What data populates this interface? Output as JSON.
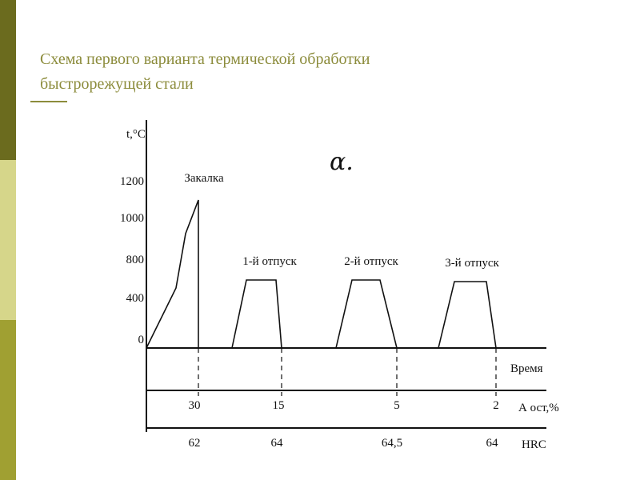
{
  "title": [
    "Схема первого варианта термической обработки",
    "быстрорежущей стали"
  ],
  "diagram": {
    "y_axis_label": "t,°C",
    "y_ticks": [
      "1200",
      "1000",
      "800",
      "400",
      "0"
    ],
    "annotation": "α.",
    "stages": [
      "Закалка",
      "1-й отпуск",
      "2-й отпуск",
      "3-й отпуск"
    ],
    "time_label": "Время",
    "residual_austenite": {
      "label": "А ост,%",
      "values": [
        "30",
        "15",
        "5",
        "2"
      ]
    },
    "hardness": {
      "label": "HRC",
      "values": [
        "62",
        "64",
        "64,5",
        "64"
      ]
    }
  }
}
